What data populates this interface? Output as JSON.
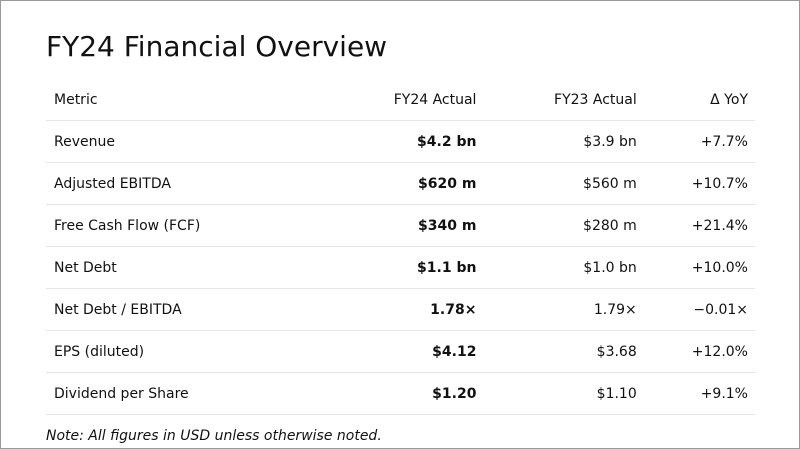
{
  "title": "FY24 Financial Overview",
  "table": {
    "headers": [
      "Metric",
      "FY24 Actual",
      "FY23 Actual",
      "Δ YoY"
    ],
    "rows": [
      [
        "Revenue",
        "$4.2 bn",
        "$3.9 bn",
        "+7.7%"
      ],
      [
        "Adjusted EBITDA",
        "$620 m",
        "$560 m",
        "+10.7%"
      ],
      [
        "Free Cash Flow (FCF)",
        "$340 m",
        "$280 m",
        "+21.4%"
      ],
      [
        "Net Debt",
        "$1.1 bn",
        "$1.0 bn",
        "+10.0%"
      ],
      [
        "Net Debt / EBITDA",
        "1.78×",
        "1.79×",
        "−0.01×"
      ],
      [
        "EPS (diluted)",
        "$4.12",
        "$3.68",
        "+12.0%"
      ],
      [
        "Dividend per Share",
        "$1.20",
        "$1.10",
        "+9.1%"
      ]
    ]
  },
  "note": "Note: All figures in USD unless otherwise noted."
}
